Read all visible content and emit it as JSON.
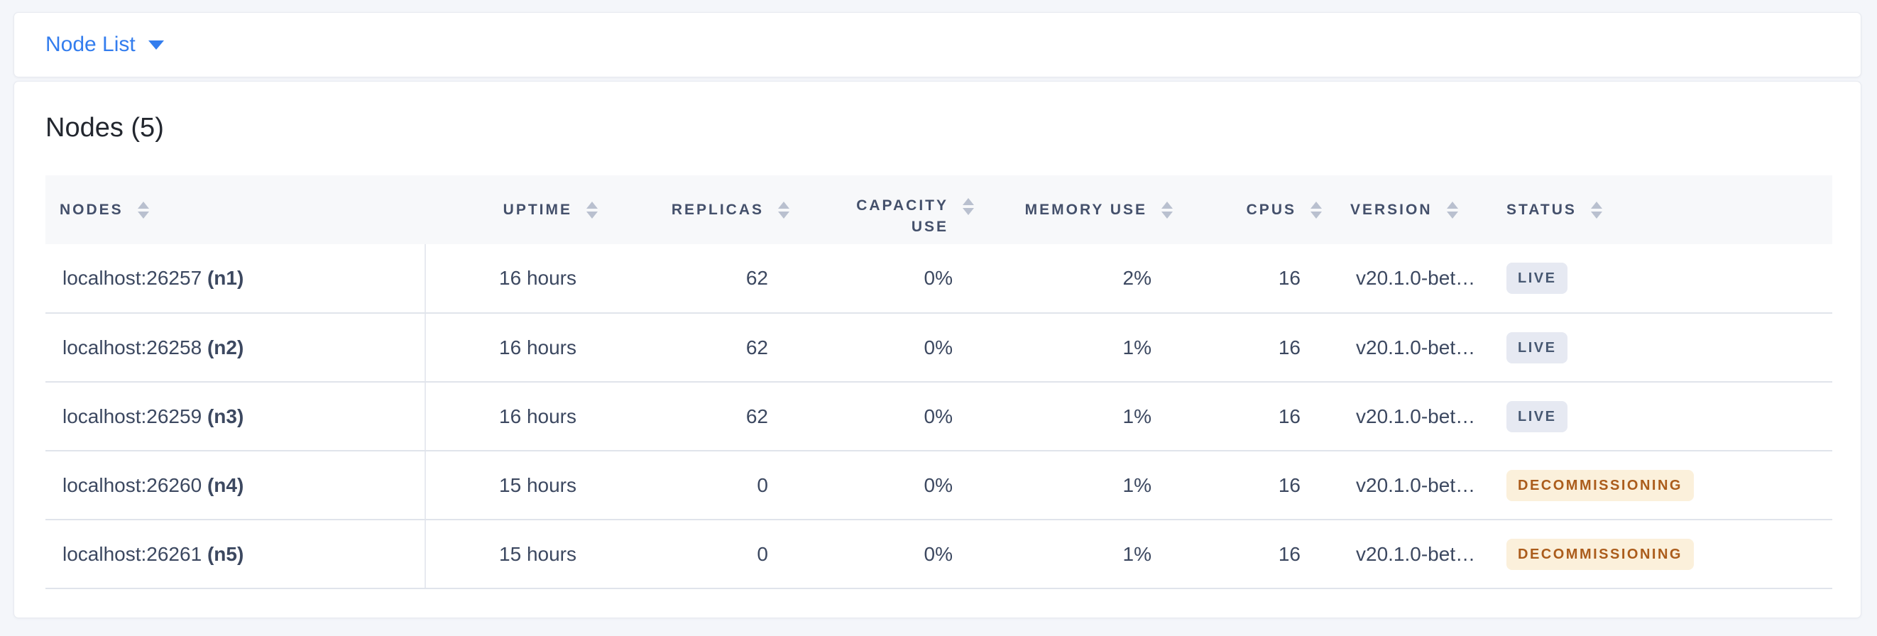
{
  "colors": {
    "accent_blue": "#337dee",
    "live_badge_bg": "#e6e9f2",
    "live_badge_text": "#475872",
    "decommissioning_badge_bg": "#fbf0db",
    "decommissioning_badge_text": "#ab5c1b"
  },
  "topbar": {
    "dropdown_label": "Node List",
    "caret_icon": "chevron-down"
  },
  "main": {
    "title": "Nodes (5)",
    "table": {
      "columns": [
        {
          "key": "nodes",
          "label": "NODES",
          "align": "left"
        },
        {
          "key": "uptime",
          "label": "UPTIME",
          "align": "right"
        },
        {
          "key": "replicas",
          "label": "REPLICAS",
          "align": "right"
        },
        {
          "key": "capacity_use",
          "label": "CAPACITY USE",
          "label_lines": [
            "CAPACITY",
            "USE"
          ],
          "align": "right"
        },
        {
          "key": "memory_use",
          "label": "MEMORY USE",
          "align": "right"
        },
        {
          "key": "cpus",
          "label": "CPUS",
          "align": "right"
        },
        {
          "key": "version",
          "label": "VERSION",
          "align": "left"
        },
        {
          "key": "status",
          "label": "STATUS",
          "align": "left"
        }
      ],
      "rows": [
        {
          "node_address": "localhost:26257",
          "node_name": "(n1)",
          "uptime": "16 hours",
          "replicas": "62",
          "capacity_use": "0%",
          "memory_use": "2%",
          "cpus": "16",
          "version": "v20.1.0-bet…",
          "status": "LIVE"
        },
        {
          "node_address": "localhost:26258",
          "node_name": "(n2)",
          "uptime": "16 hours",
          "replicas": "62",
          "capacity_use": "0%",
          "memory_use": "1%",
          "cpus": "16",
          "version": "v20.1.0-bet…",
          "status": "LIVE"
        },
        {
          "node_address": "localhost:26259",
          "node_name": "(n3)",
          "uptime": "16 hours",
          "replicas": "62",
          "capacity_use": "0%",
          "memory_use": "1%",
          "cpus": "16",
          "version": "v20.1.0-bet…",
          "status": "LIVE"
        },
        {
          "node_address": "localhost:26260",
          "node_name": "(n4)",
          "uptime": "15 hours",
          "replicas": "0",
          "capacity_use": "0%",
          "memory_use": "1%",
          "cpus": "16",
          "version": "v20.1.0-bet…",
          "status": "DECOMMISSIONING"
        },
        {
          "node_address": "localhost:26261",
          "node_name": "(n5)",
          "uptime": "15 hours",
          "replicas": "0",
          "capacity_use": "0%",
          "memory_use": "1%",
          "cpus": "16",
          "version": "v20.1.0-bet…",
          "status": "DECOMMISSIONING"
        }
      ]
    }
  }
}
